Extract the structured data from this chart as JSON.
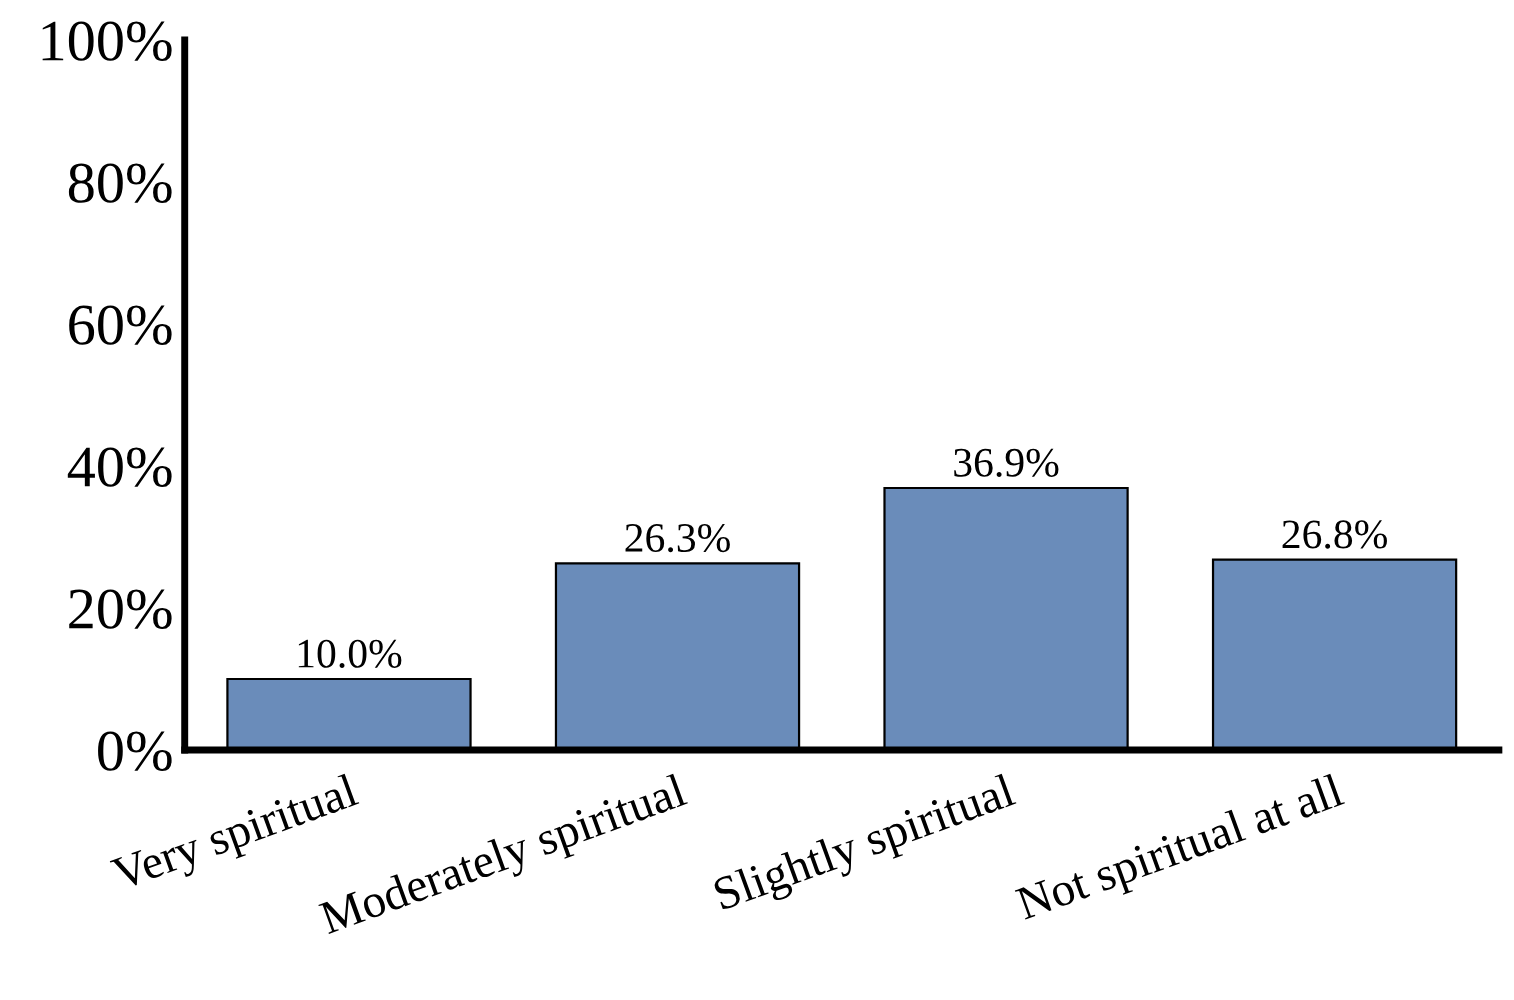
{
  "chart_data": {
    "type": "bar",
    "categories": [
      "Very spiritual",
      "Moderately spiritual",
      "Slightly spiritual",
      "Not spiritual at all"
    ],
    "values": [
      10.0,
      26.3,
      36.9,
      26.8
    ],
    "value_labels": [
      "10.0%",
      "26.3%",
      "36.9%",
      "26.8%"
    ],
    "color": "#6a8cba",
    "ylim": [
      0,
      100
    ],
    "yticks": [
      {
        "value": 0,
        "label": "0%"
      },
      {
        "value": 20,
        "label": "20%"
      },
      {
        "value": 40,
        "label": "40%"
      },
      {
        "value": 60,
        "label": "60%"
      },
      {
        "value": 80,
        "label": "80%"
      },
      {
        "value": 100,
        "label": "100%"
      }
    ],
    "grid": false,
    "legend": false
  }
}
